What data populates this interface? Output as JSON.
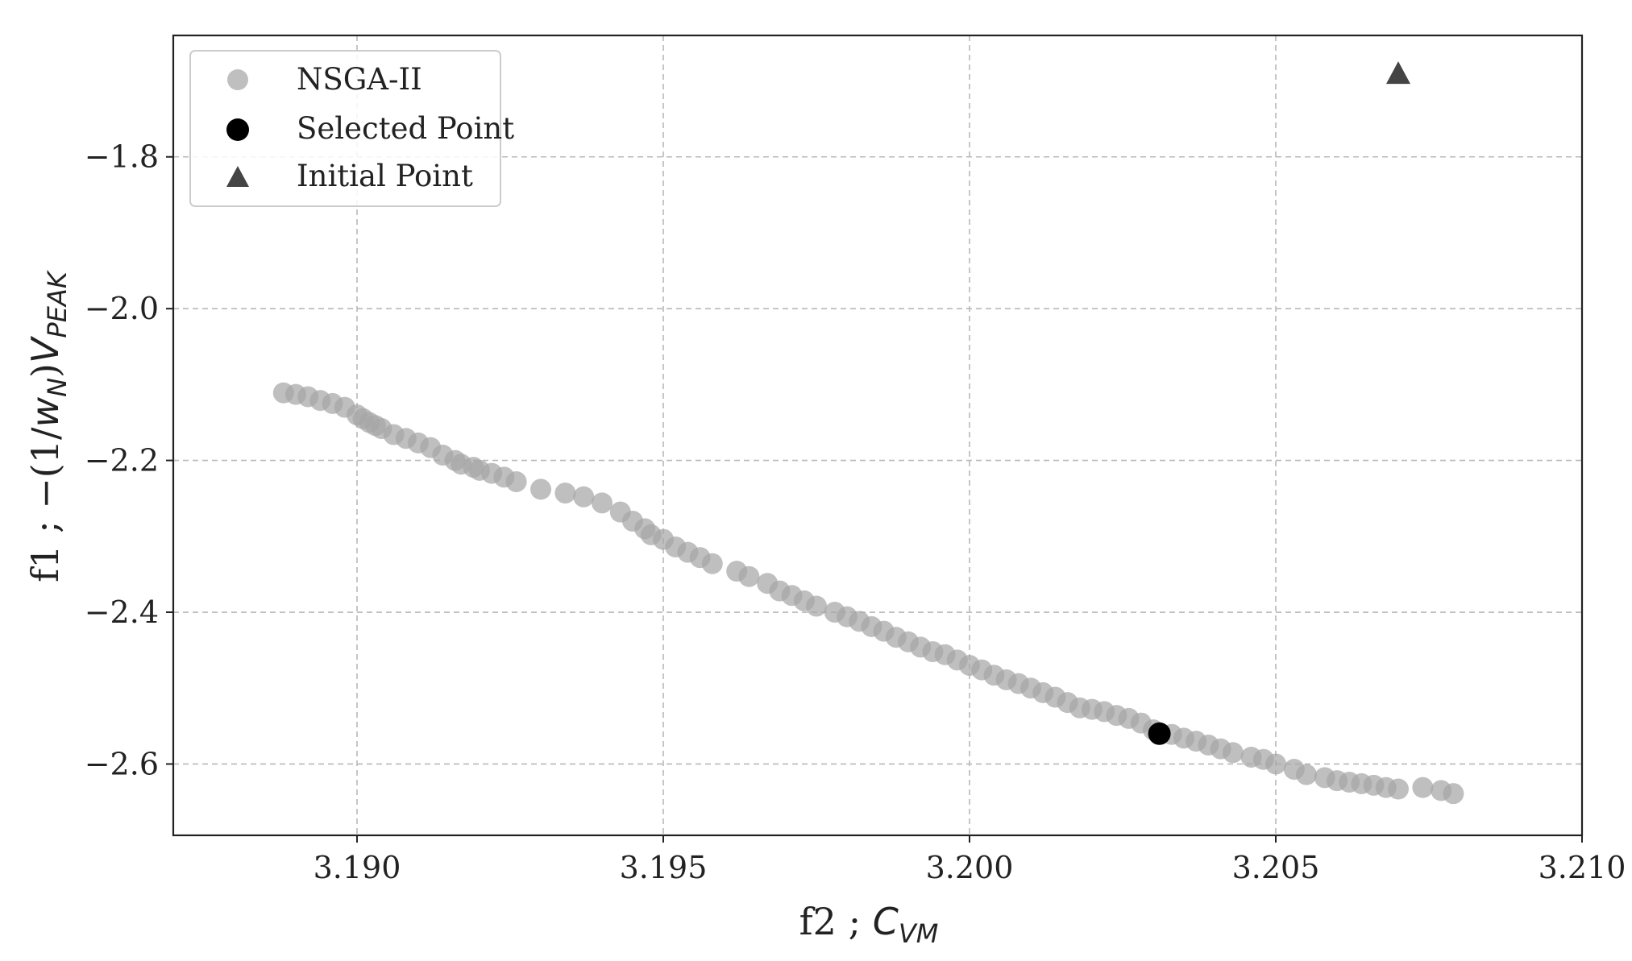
{
  "chart_data": {
    "type": "scatter",
    "xlabel": "f2 ; C_VM",
    "xlabel_main": "f2 ; ",
    "xlabel_var": "C",
    "xlabel_sub": "VM",
    "ylabel": "f1 ; −(1/w_N)V_PEAK",
    "ylabel_main": "f1 ; −(1/",
    "ylabel_w": "w",
    "ylabel_w_sub": "N",
    "ylabel_mid": ")",
    "ylabel_V": "V",
    "ylabel_V_sub": "PEAK",
    "xlim": [
      3.187,
      3.21
    ],
    "ylim": [
      -2.694,
      -1.64
    ],
    "xticks": [
      3.19,
      3.195,
      3.2,
      3.205,
      3.21
    ],
    "xtick_labels": [
      "3.190",
      "3.195",
      "3.200",
      "3.205",
      "3.210"
    ],
    "yticks": [
      -1.8,
      -2.0,
      -2.2,
      -2.4,
      -2.6
    ],
    "ytick_labels": [
      "−1.8",
      "−2.0",
      "−2.2",
      "−2.4",
      "−2.6"
    ],
    "grid": true,
    "legend_position": "top-left",
    "series": [
      {
        "name": "NSGA-II",
        "marker": "circle",
        "color": "#a6a6a6",
        "x": [
          3.1888,
          3.189,
          3.1892,
          3.1894,
          3.1896,
          3.1898,
          3.19,
          3.1901,
          3.1902,
          3.1903,
          3.1904,
          3.1906,
          3.1908,
          3.191,
          3.1912,
          3.1914,
          3.1916,
          3.1917,
          3.1919,
          3.192,
          3.1922,
          3.1924,
          3.1926,
          3.193,
          3.1934,
          3.1937,
          3.194,
          3.1943,
          3.1945,
          3.1947,
          3.1948,
          3.195,
          3.1952,
          3.1954,
          3.1956,
          3.1958,
          3.1962,
          3.1964,
          3.1967,
          3.1969,
          3.1971,
          3.1973,
          3.1975,
          3.1978,
          3.198,
          3.1982,
          3.1984,
          3.1986,
          3.1988,
          3.199,
          3.1992,
          3.1994,
          3.1996,
          3.1998,
          3.2,
          3.2002,
          3.2004,
          3.2006,
          3.2008,
          3.201,
          3.2012,
          3.2014,
          3.2016,
          3.2018,
          3.202,
          3.2022,
          3.2024,
          3.2026,
          3.2028,
          3.203,
          3.2033,
          3.2035,
          3.2037,
          3.2039,
          3.2041,
          3.2043,
          3.2046,
          3.2048,
          3.205,
          3.2053,
          3.2055,
          3.2058,
          3.206,
          3.2062,
          3.2064,
          3.2066,
          3.2068,
          3.207,
          3.2074,
          3.2077,
          3.2079
        ],
        "y": [
          -2.111,
          -2.113,
          -2.116,
          -2.121,
          -2.125,
          -2.13,
          -2.14,
          -2.145,
          -2.15,
          -2.154,
          -2.158,
          -2.166,
          -2.171,
          -2.177,
          -2.183,
          -2.193,
          -2.2,
          -2.205,
          -2.209,
          -2.213,
          -2.217,
          -2.222,
          -2.228,
          -2.238,
          -2.243,
          -2.248,
          -2.256,
          -2.268,
          -2.28,
          -2.29,
          -2.298,
          -2.304,
          -2.314,
          -2.321,
          -2.328,
          -2.336,
          -2.346,
          -2.353,
          -2.362,
          -2.372,
          -2.378,
          -2.385,
          -2.392,
          -2.4,
          -2.406,
          -2.412,
          -2.419,
          -2.425,
          -2.433,
          -2.439,
          -2.446,
          -2.452,
          -2.456,
          -2.463,
          -2.47,
          -2.476,
          -2.483,
          -2.489,
          -2.494,
          -2.5,
          -2.506,
          -2.512,
          -2.519,
          -2.526,
          -2.528,
          -2.531,
          -2.536,
          -2.54,
          -2.546,
          -2.555,
          -2.561,
          -2.566,
          -2.57,
          -2.575,
          -2.58,
          -2.585,
          -2.591,
          -2.594,
          -2.6,
          -2.607,
          -2.614,
          -2.618,
          -2.622,
          -2.624,
          -2.626,
          -2.628,
          -2.631,
          -2.633,
          -2.631,
          -2.635,
          -2.639
        ]
      },
      {
        "name": "Selected Point",
        "marker": "circle",
        "color": "#000000",
        "x": [
          3.2031
        ],
        "y": [
          -2.56
        ]
      },
      {
        "name": "Initial Point",
        "marker": "triangle",
        "color": "#444444",
        "x": [
          3.207
        ],
        "y": [
          -1.69
        ]
      }
    ]
  }
}
